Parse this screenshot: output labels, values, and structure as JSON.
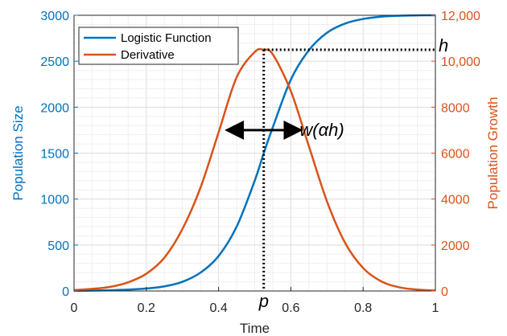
{
  "chart_data": {
    "type": "line",
    "xlabel": "Time",
    "ylabel_left": "Population Size",
    "ylabel_right": "Population Growth",
    "xlim": [
      0,
      1
    ],
    "ylim_left": [
      0,
      3000
    ],
    "ylim_right": [
      0,
      12000
    ],
    "x_ticks": [
      0,
      0.2,
      0.4,
      0.6,
      0.8,
      1
    ],
    "x_tick_labels": [
      "0",
      "0.2",
      "0.4",
      "0.6",
      "0.8",
      "1"
    ],
    "y_left_ticks": [
      0,
      500,
      1000,
      1500,
      2000,
      2500,
      3000
    ],
    "y_left_tick_labels": [
      "0",
      "500",
      "1000",
      "1500",
      "2000",
      "2500",
      "3000"
    ],
    "y_right_ticks": [
      0,
      2000,
      4000,
      6000,
      8000,
      10000,
      12000
    ],
    "y_right_tick_labels": [
      "0",
      "2000",
      "4000",
      "6000",
      "8000",
      "10,000",
      "12,000"
    ],
    "grid": true,
    "legend_position": "top-left",
    "series": [
      {
        "name": "Logistic Function",
        "axis": "left",
        "color": "#0072BD",
        "x": [
          0,
          0.05,
          0.1,
          0.15,
          0.2,
          0.25,
          0.3,
          0.35,
          0.4,
          0.45,
          0.5,
          0.525,
          0.55,
          0.6,
          0.65,
          0.7,
          0.75,
          0.8,
          0.85,
          0.9,
          0.95,
          1
        ],
        "y": [
          2,
          4,
          8,
          15,
          27,
          50,
          100,
          200,
          380,
          700,
          1200,
          1500,
          1780,
          2300,
          2620,
          2810,
          2910,
          2960,
          2985,
          2995,
          2999,
          3000
        ]
      },
      {
        "name": "Derivative",
        "axis": "right",
        "color": "#D95319",
        "x": [
          0,
          0.05,
          0.1,
          0.15,
          0.2,
          0.25,
          0.3,
          0.35,
          0.4,
          0.45,
          0.5,
          0.525,
          0.55,
          0.6,
          0.65,
          0.7,
          0.75,
          0.8,
          0.85,
          0.9,
          0.95,
          1
        ],
        "y": [
          40,
          90,
          180,
          380,
          750,
          1450,
          2700,
          4500,
          6900,
          9300,
          10400,
          10500,
          10300,
          8700,
          6300,
          3900,
          2100,
          1000,
          420,
          160,
          60,
          20
        ]
      }
    ],
    "annotations": {
      "peak_label": "h",
      "peak_value": 10500,
      "peak_x_label": "p",
      "peak_x": 0.525,
      "width_label": "w(αh)",
      "width_y": 7000,
      "width_x_start": 0.43,
      "width_x_end": 0.62
    }
  }
}
